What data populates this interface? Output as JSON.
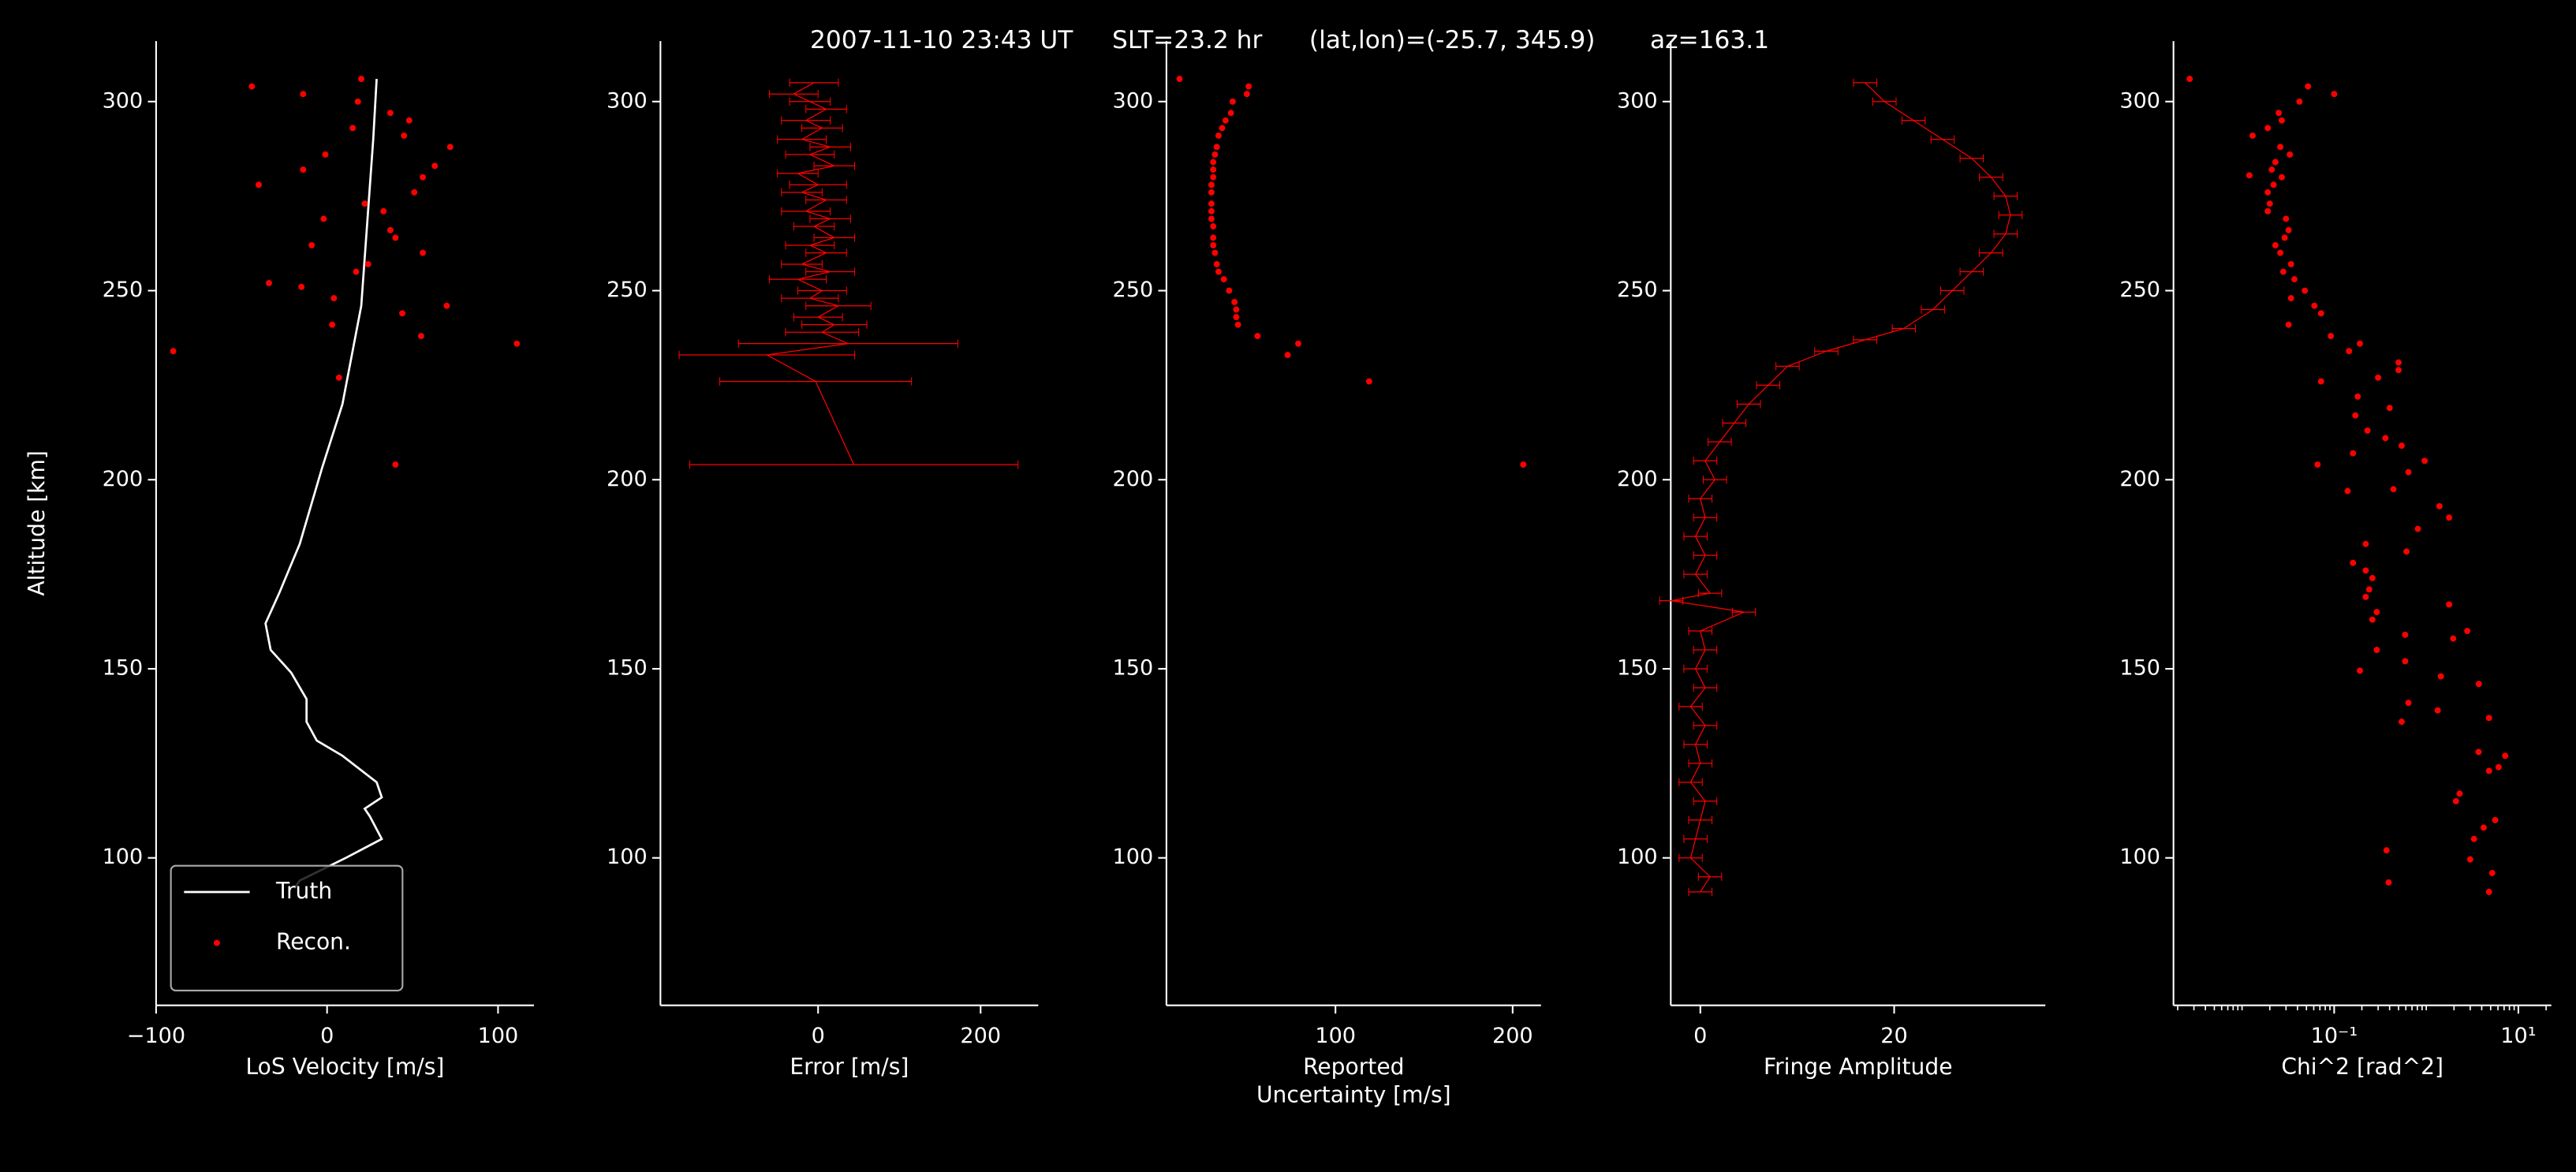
{
  "title": "2007-11-10 23:43 UT     SLT=23.2 hr      (lat,lon)=(-25.7, 345.9)       az=163.1",
  "chart_data": [
    {
      "type": "line",
      "xlabel": "LoS Velocity [m/s]",
      "ylabel": "Altitude [km]",
      "xlim": [
        -100,
        121
      ],
      "ylim": [
        61,
        316
      ],
      "xticks": [
        {
          "value": -100,
          "label": "−100"
        },
        0,
        100
      ],
      "yticks": [
        100,
        150,
        200,
        250,
        300
      ],
      "legend": "lower left",
      "series": [
        {
          "name": "Truth",
          "type": "line",
          "color": "#ffffff",
          "x": [
            29,
            27,
            20,
            9,
            -3,
            -16,
            -28,
            -36,
            -33,
            -21,
            -12,
            -12,
            -6,
            9,
            29,
            32,
            22,
            25,
            32,
            11,
            -16,
            -19
          ],
          "y": [
            306,
            290,
            246,
            220,
            203,
            183,
            170,
            162,
            155,
            149,
            142,
            136,
            131,
            127,
            120,
            116,
            113,
            111,
            105,
            100,
            94,
            92
          ]
        },
        {
          "name": "Recon.",
          "type": "scatter",
          "color": "#ff0000",
          "x": [
            -44,
            -14,
            20,
            18,
            37,
            48,
            15,
            45,
            72,
            -1,
            63,
            -14,
            56,
            -40,
            51,
            22,
            33,
            -2,
            37,
            40,
            -9,
            56,
            24,
            17,
            -34,
            -15,
            4,
            70,
            44,
            3,
            55,
            111,
            -90,
            7,
            40
          ],
          "y": [
            304,
            302,
            306,
            300,
            297,
            295,
            293,
            291,
            288,
            286,
            283,
            282,
            280,
            278,
            276,
            273,
            271,
            269,
            266,
            264,
            262,
            260,
            257,
            255,
            252,
            251,
            248,
            246,
            244,
            241,
            238,
            236,
            234,
            227,
            204
          ]
        }
      ]
    },
    {
      "type": "errorbar",
      "xlabel": "Error [m/s]",
      "xlim": [
        -194,
        271
      ],
      "ylim": [
        61,
        316
      ],
      "xticks": [
        0,
        200
      ],
      "yticks": [
        100,
        150,
        200,
        250,
        300
      ],
      "series": [
        {
          "color": "#ff0000",
          "x": [
            -5,
            -30,
            -10,
            10,
            -15,
            5,
            -20,
            15,
            -10,
            20,
            -25,
            0,
            -20,
            10,
            -15,
            15,
            -5,
            20,
            -10,
            10,
            -20,
            15,
            -25,
            5,
            -10,
            25,
            0,
            20,
            5,
            37,
            -63,
            -3,
            44
          ],
          "xerr": [
            30,
            30,
            25,
            25,
            30,
            25,
            30,
            25,
            30,
            25,
            25,
            35,
            25,
            25,
            30,
            25,
            25,
            25,
            30,
            25,
            25,
            30,
            35,
            30,
            35,
            40,
            30,
            40,
            45,
            135,
            108,
            118,
            202
          ],
          "y": [
            305,
            302,
            300,
            298,
            295,
            293,
            290,
            288,
            286,
            283,
            281,
            278,
            276,
            274,
            271,
            269,
            267,
            264,
            262,
            260,
            257,
            255,
            253,
            250,
            248,
            246,
            243,
            241,
            239,
            236,
            233,
            226,
            204
          ]
        }
      ]
    },
    {
      "type": "scatter",
      "xlabel": "Reported\nUncertainty [m/s]",
      "xlim": [
        4.6,
        216
      ],
      "ylim": [
        61,
        316
      ],
      "xticks": [
        100,
        200
      ],
      "yticks": [
        100,
        150,
        200,
        250,
        300
      ],
      "series": [
        {
          "color": "#ff0000",
          "x": [
            12,
            51,
            50,
            42,
            41,
            38,
            36,
            34,
            33,
            32,
            31,
            31,
            31,
            30,
            30,
            30,
            30,
            30,
            31,
            31,
            31,
            32,
            33,
            34,
            37,
            40,
            43,
            44,
            44,
            45,
            56,
            79,
            73,
            119,
            206
          ],
          "y": [
            306,
            304,
            302,
            300,
            297,
            295,
            293,
            291,
            288,
            286,
            284,
            282,
            280,
            278,
            276,
            273,
            271,
            269,
            267,
            264,
            262,
            260,
            257,
            255,
            253,
            250,
            247,
            245,
            243,
            241,
            238,
            236,
            233,
            226,
            204
          ]
        }
      ]
    },
    {
      "type": "errorbar",
      "xlabel": "Fringe Amplitude",
      "xlim": [
        -3.05,
        35.6
      ],
      "ylim": [
        61,
        316
      ],
      "xticks": [
        0,
        20
      ],
      "yticks": [
        100,
        150,
        200,
        250,
        300
      ],
      "series": [
        {
          "color": "#ff0000",
          "x": [
            17,
            19,
            22,
            25,
            28,
            30,
            31.5,
            32,
            31.5,
            30,
            28,
            26,
            24,
            21,
            17,
            13,
            9,
            7,
            5,
            3.5,
            2,
            0.5,
            1.5,
            0,
            0.5,
            -0.5,
            0.5,
            -0.5,
            1,
            -3,
            4.5,
            0,
            0.5,
            -0.5,
            0.5,
            -1,
            0.5,
            -0.5,
            0,
            -1,
            0.5,
            0,
            -0.5,
            -1,
            1,
            0
          ],
          "xerr": [
            1.2,
            1.2,
            1.2,
            1.2,
            1.2,
            1.2,
            1.2,
            1.2,
            1.2,
            1.2,
            1.2,
            1.2,
            1.2,
            1.2,
            1.2,
            1.2,
            1.2,
            1.2,
            1.2,
            1.2,
            1.2,
            1.2,
            1.2,
            1.2,
            1.2,
            1.2,
            1.2,
            1.2,
            1.2,
            1.2,
            1.2,
            1.2,
            1.2,
            1.2,
            1.2,
            1.2,
            1.2,
            1.2,
            1.2,
            1.2,
            1.2,
            1.2,
            1.2,
            1.2,
            1.2,
            1.2
          ],
          "y": [
            305,
            300,
            295,
            290,
            285,
            280,
            275,
            270,
            265,
            260,
            255,
            250,
            245,
            240,
            237,
            234,
            230,
            225,
            220,
            215,
            210,
            205,
            200,
            195,
            190,
            185,
            180,
            175,
            170,
            168,
            165,
            160,
            155,
            150,
            145,
            140,
            135,
            130,
            125,
            120,
            115,
            110,
            105,
            100,
            95,
            91
          ]
        }
      ]
    },
    {
      "type": "scatter",
      "xlabel": "Chi^2 [rad^2]",
      "xscale": "log",
      "xlim": [
        0.0018,
        22.8
      ],
      "ylim": [
        61,
        316
      ],
      "xticks": [
        {
          "value": 0.1,
          "label": "10⁻¹"
        },
        {
          "value": 10,
          "label": "10¹"
        }
      ],
      "xminorticks": [
        0.002,
        0.003,
        0.004,
        0.005,
        0.006,
        0.007,
        0.008,
        0.009,
        0.01,
        0.02,
        0.03,
        0.04,
        0.05,
        0.06,
        0.07,
        0.08,
        0.09,
        0.2,
        0.3,
        0.4,
        0.5,
        0.6,
        0.7,
        0.8,
        0.9,
        1,
        2,
        3,
        4,
        5,
        6,
        7,
        8,
        9,
        20
      ],
      "yticks": [
        100,
        150,
        200,
        250,
        300
      ],
      "series": [
        {
          "color": "#ff0000",
          "x": [
            0.0027,
            0.052,
            0.1,
            0.042,
            0.025,
            0.027,
            0.019,
            0.013,
            0.026,
            0.033,
            0.023,
            0.021,
            0.027,
            0.012,
            0.022,
            0.019,
            0.02,
            0.019,
            0.03,
            0.032,
            0.029,
            0.023,
            0.026,
            0.034,
            0.028,
            0.037,
            0.048,
            0.034,
            0.061,
            0.072,
            0.032,
            0.092,
            0.19,
            0.145,
            0.5,
            0.5,
            0.3,
            0.072,
            0.18,
            0.4,
            0.17,
            0.23,
            0.36,
            0.54,
            0.16,
            0.96,
            0.066,
            0.64,
            0.14,
            0.44,
            1.39,
            1.77,
            0.81,
            0.22,
            0.61,
            0.16,
            0.22,
            0.26,
            0.24,
            0.22,
            1.77,
            0.29,
            0.26,
            0.59,
            2.79,
            1.96,
            0.29,
            0.59,
            3.72,
            1.44,
            0.19,
            0.64,
            1.33,
            4.8,
            0.54,
            7.2,
            3.7,
            6.1,
            4.8,
            2.3,
            2.1,
            5.6,
            4.2,
            3.3,
            0.37,
            3,
            5.2,
            0.39,
            4.8
          ],
          "y": [
            306,
            304,
            302,
            300,
            297,
            295,
            293,
            291,
            288,
            286,
            284,
            282,
            280,
            280.5,
            278,
            276,
            273,
            271,
            269,
            266,
            264,
            262,
            260,
            257,
            255,
            253,
            250,
            248,
            246,
            244,
            241,
            238,
            236,
            234,
            231,
            229,
            227,
            226,
            222,
            219,
            217,
            213,
            211,
            209,
            207,
            205,
            204,
            202,
            197,
            197.5,
            193,
            190,
            187,
            183,
            181,
            178,
            176,
            174,
            171,
            169,
            167,
            165,
            163,
            159,
            160,
            158,
            155,
            152,
            146,
            148,
            149.5,
            141,
            139,
            137,
            136,
            127,
            128,
            124,
            123,
            117,
            115,
            110,
            108,
            105,
            102,
            99.6,
            96,
            93.5,
            91
          ]
        }
      ]
    }
  ]
}
